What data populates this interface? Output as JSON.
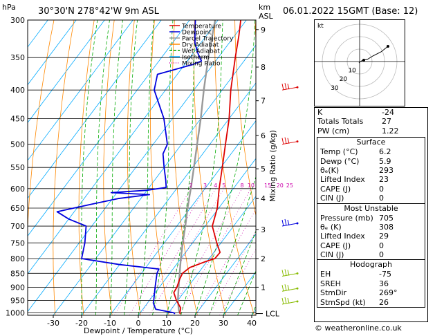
{
  "header": {
    "pressure_unit": "hPa",
    "location": "30°30'N  278°42'W  9m  ASL",
    "km_unit": "km",
    "asl_unit": "ASL",
    "valid_time": "06.01.2022  15GMT  (Base: 12)"
  },
  "chart_data": {
    "type": "skew-t",
    "xlabel": "Dewpoint / Temperature (°C)",
    "right_axis_label": "Mixing Ratio (g/kg)",
    "x_ticks": [
      -30,
      -20,
      -10,
      0,
      10,
      20,
      30,
      40
    ],
    "pressure_levels": [
      300,
      350,
      400,
      450,
      500,
      550,
      600,
      650,
      700,
      750,
      800,
      850,
      900,
      950,
      1000
    ],
    "km_ticks": [
      {
        "label": "9",
        "p": 312
      },
      {
        "label": "8",
        "p": 364
      },
      {
        "label": "7",
        "p": 418
      },
      {
        "label": "6",
        "p": 482
      },
      {
        "label": "5",
        "p": 553
      },
      {
        "label": "4",
        "p": 625
      },
      {
        "label": "3",
        "p": 710
      },
      {
        "label": "2",
        "p": 800
      },
      {
        "label": "1",
        "p": 900
      }
    ],
    "lcl_label": "LCL",
    "mixing_ratio_labels": [
      "2",
      "3",
      "4",
      "5",
      "8",
      "10",
      "15",
      "20",
      "25"
    ],
    "legend": [
      "Temperature",
      "Dewpoint",
      "Parcel Trajectory",
      "Dry Adiabat",
      "Wet Adiabat",
      "Isotherm",
      "Mixing Ratio"
    ],
    "temperature": [
      {
        "p": 1005,
        "t": 14.5
      },
      {
        "p": 1000,
        "t": 14.0
      },
      {
        "p": 980,
        "t": 13.0
      },
      {
        "p": 950,
        "t": 9.5
      },
      {
        "p": 920,
        "t": 6.5
      },
      {
        "p": 900,
        "t": 6.2
      },
      {
        "p": 870,
        "t": 5.0
      },
      {
        "p": 850,
        "t": 4.5
      },
      {
        "p": 830,
        "t": 5.5
      },
      {
        "p": 810,
        "t": 9.5
      },
      {
        "p": 800,
        "t": 12.0
      },
      {
        "p": 780,
        "t": 12.2
      },
      {
        "p": 750,
        "t": 8.5
      },
      {
        "p": 700,
        "t": 2.5
      },
      {
        "p": 650,
        "t": -0.5
      },
      {
        "p": 600,
        "t": -5.0
      },
      {
        "p": 550,
        "t": -9.5
      },
      {
        "p": 500,
        "t": -14.5
      },
      {
        "p": 450,
        "t": -20.0
      },
      {
        "p": 400,
        "t": -27.0
      },
      {
        "p": 350,
        "t": -34.0
      },
      {
        "p": 320,
        "t": -38.5
      },
      {
        "p": 300,
        "t": -42.0
      }
    ],
    "dewpoint": [
      {
        "p": 1005,
        "t": 12.5
      },
      {
        "p": 1000,
        "t": 12.0
      },
      {
        "p": 985,
        "t": 4.5
      },
      {
        "p": 960,
        "t": 2.0
      },
      {
        "p": 950,
        "t": 1.5
      },
      {
        "p": 900,
        "t": -1.5
      },
      {
        "p": 850,
        "t": -4.5
      },
      {
        "p": 835,
        "t": -5.0
      },
      {
        "p": 820,
        "t": -20.0
      },
      {
        "p": 800,
        "t": -35.0
      },
      {
        "p": 750,
        "t": -38.0
      },
      {
        "p": 700,
        "t": -42.0
      },
      {
        "p": 680,
        "t": -50.0
      },
      {
        "p": 660,
        "t": -56.0
      },
      {
        "p": 640,
        "t": -46.0
      },
      {
        "p": 625,
        "t": -38.0
      },
      {
        "p": 615,
        "t": -28.0
      },
      {
        "p": 610,
        "t": -42.0
      },
      {
        "p": 604,
        "t": -30.0
      },
      {
        "p": 597,
        "t": -24.0
      },
      {
        "p": 580,
        "t": -26.0
      },
      {
        "p": 550,
        "t": -30.0
      },
      {
        "p": 520,
        "t": -34.0
      },
      {
        "p": 500,
        "t": -35.0
      },
      {
        "p": 450,
        "t": -43.0
      },
      {
        "p": 400,
        "t": -54.0
      },
      {
        "p": 375,
        "t": -57.0
      },
      {
        "p": 360,
        "t": -47.0
      },
      {
        "p": 355,
        "t": -45.0
      },
      {
        "p": 345,
        "t": -48.0
      },
      {
        "p": 330,
        "t": -52.0
      },
      {
        "p": 315,
        "t": -55.0
      },
      {
        "p": 300,
        "t": -58.0
      }
    ],
    "parcel": [
      {
        "p": 1000,
        "t": 14.0
      },
      {
        "p": 990,
        "t": 13.0
      },
      {
        "p": 950,
        "t": 10.0
      },
      {
        "p": 900,
        "t": 6.8
      },
      {
        "p": 850,
        "t": 3.5
      },
      {
        "p": 800,
        "t": 0.0
      },
      {
        "p": 750,
        "t": -3.5
      },
      {
        "p": 700,
        "t": -7.0
      },
      {
        "p": 650,
        "t": -11.0
      },
      {
        "p": 600,
        "t": -15.0
      },
      {
        "p": 550,
        "t": -19.5
      },
      {
        "p": 500,
        "t": -24.5
      },
      {
        "p": 450,
        "t": -30.0
      },
      {
        "p": 400,
        "t": -36.5
      },
      {
        "p": 350,
        "t": -43.5
      },
      {
        "p": 300,
        "t": -51.0
      }
    ]
  },
  "hodograph": {
    "label": "kt",
    "ring_labels": [
      "10",
      "20",
      "30"
    ]
  },
  "indices": {
    "rows": [
      {
        "k": "K",
        "v": "-24"
      },
      {
        "k": "Totals Totals",
        "v": "27"
      },
      {
        "k": "PW (cm)",
        "v": "1.22"
      }
    ]
  },
  "surface": {
    "title": "Surface",
    "rows": [
      {
        "k": "Temp (°C)",
        "v": "6.2"
      },
      {
        "k": "Dewp (°C)",
        "v": "5.9"
      },
      {
        "k": "θₑ(K)",
        "v": "293"
      },
      {
        "k": "Lifted Index",
        "v": "23"
      },
      {
        "k": "CAPE (J)",
        "v": "0"
      },
      {
        "k": "CIN (J)",
        "v": "0"
      }
    ]
  },
  "most_unstable": {
    "title": "Most Unstable",
    "rows": [
      {
        "k": "Pressure (mb)",
        "v": "705"
      },
      {
        "k": "θₑ (K)",
        "v": "308"
      },
      {
        "k": "Lifted Index",
        "v": "29"
      },
      {
        "k": "CAPE (J)",
        "v": "0"
      },
      {
        "k": "CIN (J)",
        "v": "0"
      }
    ]
  },
  "hodograph_stats": {
    "title": "Hodograph",
    "rows": [
      {
        "k": "EH",
        "v": "-75"
      },
      {
        "k": "SREH",
        "v": "36"
      },
      {
        "k": "StmDir",
        "v": "269°"
      },
      {
        "k": "StmSpd (kt)",
        "v": "26"
      }
    ]
  },
  "footer": "© weatheronline.co.uk",
  "colors": {
    "temperature": "#dd0000",
    "dewpoint": "#0000dd",
    "parcel": "#999999",
    "dry_adiabat": "#ff8800",
    "wet_adiabat": "#00aa00",
    "isotherm": "#00aaff",
    "mixing_ratio": "#cc00aa"
  }
}
